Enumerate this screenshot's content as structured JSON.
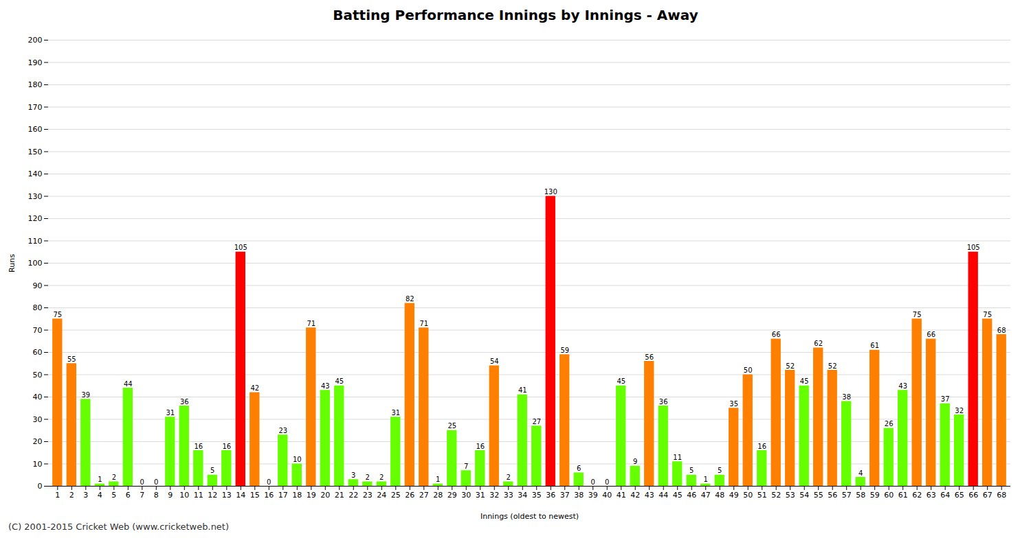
{
  "chart_data": {
    "type": "bar",
    "title": "Batting Performance Innings by Innings - Away",
    "x_label": "Innings (oldest to newest)",
    "y_label": "Runs",
    "categories": [
      "1",
      "2",
      "3",
      "4",
      "5",
      "6",
      "7",
      "8",
      "9",
      "10",
      "11",
      "12",
      "13",
      "14",
      "15",
      "16",
      "17",
      "18",
      "19",
      "20",
      "21",
      "22",
      "23",
      "24",
      "25",
      "26",
      "27",
      "28",
      "29",
      "30",
      "31",
      "32",
      "33",
      "34",
      "35",
      "36",
      "37",
      "38",
      "39",
      "40",
      "41",
      "42",
      "43",
      "44",
      "45",
      "46",
      "47",
      "48",
      "49",
      "50",
      "51",
      "52",
      "53",
      "54",
      "55",
      "56",
      "57",
      "58",
      "59",
      "60",
      "61",
      "62",
      "63",
      "64",
      "65",
      "66",
      "67",
      "68"
    ],
    "values": [
      75,
      55,
      39,
      1,
      2,
      44,
      0,
      0,
      31,
      36,
      16,
      5,
      16,
      105,
      42,
      0,
      23,
      10,
      71,
      43,
      45,
      3,
      2,
      2,
      31,
      82,
      71,
      1,
      25,
      7,
      16,
      54,
      2,
      41,
      27,
      130,
      59,
      6,
      0,
      0,
      45,
      9,
      56,
      36,
      11,
      5,
      1,
      5,
      35,
      50,
      16,
      66,
      52,
      45,
      62,
      52,
      38,
      4,
      61,
      26,
      43,
      75,
      66,
      37,
      32,
      105,
      75,
      68
    ],
    "colors": [
      "#FF8000",
      "#FF8000",
      "#66FF00",
      "#66FF00",
      "#66FF00",
      "#66FF00",
      "#66FF00",
      "#66FF00",
      "#66FF00",
      "#66FF00",
      "#66FF00",
      "#66FF00",
      "#66FF00",
      "#FF0000",
      "#FF8000",
      "#66FF00",
      "#66FF00",
      "#66FF00",
      "#FF8000",
      "#66FF00",
      "#66FF00",
      "#66FF00",
      "#66FF00",
      "#66FF00",
      "#66FF00",
      "#FF8000",
      "#FF8000",
      "#66FF00",
      "#66FF00",
      "#66FF00",
      "#66FF00",
      "#FF8000",
      "#66FF00",
      "#66FF00",
      "#66FF00",
      "#FF0000",
      "#FF8000",
      "#66FF00",
      "#66FF00",
      "#66FF00",
      "#66FF00",
      "#66FF00",
      "#FF8000",
      "#66FF00",
      "#66FF00",
      "#66FF00",
      "#66FF00",
      "#66FF00",
      "#FF8000",
      "#FF8000",
      "#66FF00",
      "#FF8000",
      "#FF8000",
      "#66FF00",
      "#FF8000",
      "#FF8000",
      "#66FF00",
      "#66FF00",
      "#FF8000",
      "#66FF00",
      "#66FF00",
      "#FF8000",
      "#FF8000",
      "#66FF00",
      "#66FF00",
      "#FF0000",
      "#FF8000",
      "#FF8000"
    ],
    "ylim": [
      0,
      200
    ],
    "yticks": [
      0,
      10,
      20,
      30,
      40,
      50,
      60,
      70,
      80,
      90,
      100,
      110,
      120,
      130,
      140,
      150,
      160,
      170,
      180,
      190,
      200
    ],
    "grid": true,
    "data_labels": true,
    "annotations": [
      "(C) 2001-2015 Cricket Web (www.cricketweb.net)"
    ]
  }
}
